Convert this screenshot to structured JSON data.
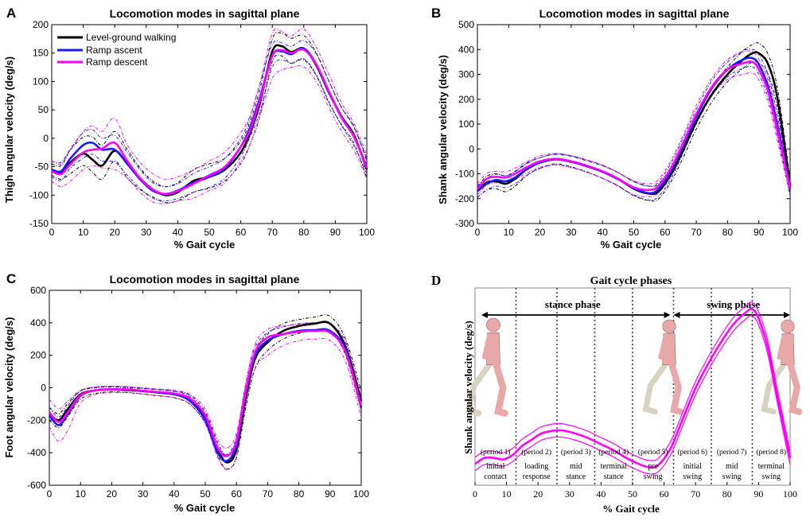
{
  "figure": {
    "panel_letters": [
      "A",
      "B",
      "C",
      "D"
    ]
  },
  "colors": {
    "level": "#000000",
    "ascent": "#1a1aff",
    "descent": "#ff00ff",
    "human_body": "#e8a8a8",
    "human_shadow": "#d8d2c0"
  },
  "chart_data": [
    {
      "type": "line",
      "panel": "A",
      "title": "Locomotion modes in sagittal plane",
      "xlabel": "% Gait cycle",
      "ylabel": "Thigh angular velocity (deg/s)",
      "xlim": [
        0,
        100
      ],
      "ylim": [
        -150,
        200
      ],
      "xticks": [
        0,
        10,
        20,
        30,
        40,
        50,
        60,
        70,
        80,
        90,
        100
      ],
      "yticks": [
        -150,
        -100,
        -50,
        0,
        50,
        100,
        150,
        200
      ],
      "legend": {
        "placement": "top-left",
        "entries": [
          "Level-ground walking",
          "Ramp ascent",
          "Ramp descent"
        ]
      },
      "x": [
        0,
        3,
        6,
        10,
        13,
        16,
        20,
        24,
        28,
        32,
        36,
        40,
        45,
        50,
        55,
        60,
        63,
        66,
        70,
        73,
        76,
        80,
        84,
        88,
        92,
        96,
        100
      ],
      "series": [
        {
          "name": "Level-ground walking",
          "values": [
            -55,
            -60,
            -42,
            -27,
            -38,
            -48,
            -22,
            -45,
            -70,
            -90,
            -100,
            -95,
            -75,
            -68,
            -55,
            -25,
            10,
            60,
            153,
            162,
            152,
            158,
            128,
            80,
            38,
            5,
            -55
          ]
        },
        {
          "name": "Ramp ascent",
          "values": [
            -55,
            -58,
            -35,
            -12,
            -8,
            -20,
            -20,
            -45,
            -72,
            -92,
            -98,
            -92,
            -78,
            -68,
            -52,
            -15,
            20,
            70,
            145,
            153,
            148,
            158,
            130,
            82,
            38,
            2,
            -50
          ]
        },
        {
          "name": "Ramp descent",
          "values": [
            -58,
            -63,
            -45,
            -25,
            -20,
            -18,
            -8,
            -40,
            -70,
            -90,
            -98,
            -93,
            -80,
            -65,
            -50,
            -15,
            15,
            65,
            145,
            155,
            150,
            156,
            130,
            82,
            36,
            2,
            -52
          ]
        }
      ],
      "bands": [
        {
          "color_key": "level",
          "upper": [
            -45,
            -48,
            -20,
            2,
            2,
            -12,
            12,
            -20,
            -52,
            -75,
            -85,
            -78,
            -55,
            -45,
            -35,
            -5,
            30,
            85,
            175,
            185,
            176,
            181,
            150,
            100,
            54,
            20,
            -40
          ],
          "lower": [
            -65,
            -72,
            -62,
            -48,
            -60,
            -72,
            -40,
            -70,
            -90,
            -103,
            -113,
            -110,
            -95,
            -88,
            -75,
            -45,
            -10,
            38,
            135,
            145,
            132,
            138,
            110,
            62,
            24,
            -10,
            -70
          ]
        },
        {
          "color_key": "ascent",
          "upper": [
            -40,
            -42,
            -18,
            10,
            15,
            0,
            5,
            -25,
            -55,
            -78,
            -85,
            -80,
            -62,
            -50,
            -35,
            0,
            38,
            95,
            165,
            168,
            162,
            172,
            148,
            100,
            54,
            18,
            -35
          ],
          "lower": [
            -68,
            -74,
            -52,
            -35,
            -28,
            -40,
            -42,
            -65,
            -88,
            -105,
            -110,
            -106,
            -95,
            -86,
            -70,
            -32,
            3,
            45,
            125,
            138,
            132,
            140,
            112,
            64,
            22,
            -14,
            -62
          ]
        },
        {
          "color_key": "descent",
          "upper": [
            -40,
            -45,
            -20,
            12,
            22,
            12,
            35,
            -12,
            -42,
            -62,
            -72,
            -68,
            -56,
            -40,
            -24,
            10,
            40,
            95,
            185,
            188,
            180,
            192,
            160,
            112,
            62,
            25,
            -30
          ],
          "lower": [
            -76,
            -85,
            -75,
            -55,
            -48,
            -52,
            -55,
            -70,
            -95,
            -112,
            -115,
            -110,
            -105,
            -92,
            -78,
            -40,
            -10,
            38,
            105,
            120,
            125,
            126,
            100,
            54,
            12,
            -22,
            -72
          ]
        }
      ]
    },
    {
      "type": "line",
      "panel": "B",
      "title": "Locomotion modes in sagittal plane",
      "xlabel": "% Gait cycle",
      "ylabel": "Shank angular velocity (deg/s)",
      "xlim": [
        0,
        100
      ],
      "ylim": [
        -300,
        500
      ],
      "xticks": [
        0,
        10,
        20,
        30,
        40,
        50,
        60,
        70,
        80,
        90,
        100
      ],
      "yticks": [
        -300,
        -200,
        -100,
        0,
        100,
        200,
        300,
        400,
        500
      ],
      "x": [
        0,
        3,
        6,
        9,
        12,
        16,
        20,
        25,
        30,
        35,
        40,
        45,
        50,
        55,
        58,
        62,
        66,
        70,
        75,
        80,
        85,
        88,
        90,
        93,
        96,
        100
      ],
      "series": [
        {
          "name": "Level-ground walking",
          "values": [
            -170,
            -135,
            -130,
            -140,
            -120,
            -80,
            -55,
            -40,
            -50,
            -68,
            -90,
            -120,
            -160,
            -180,
            -170,
            -100,
            0,
            110,
            220,
            300,
            360,
            385,
            385,
            340,
            200,
            -150
          ]
        },
        {
          "name": "Ramp ascent",
          "values": [
            -170,
            -140,
            -125,
            -130,
            -115,
            -80,
            -55,
            -42,
            -52,
            -70,
            -92,
            -122,
            -158,
            -178,
            -160,
            -85,
            20,
            130,
            245,
            320,
            360,
            365,
            340,
            250,
            90,
            -160
          ]
        },
        {
          "name": "Ramp descent",
          "values": [
            -160,
            -120,
            -112,
            -115,
            -100,
            -72,
            -50,
            -40,
            -50,
            -68,
            -90,
            -120,
            -155,
            -165,
            -148,
            -75,
            30,
            140,
            250,
            320,
            345,
            350,
            320,
            230,
            70,
            -155
          ]
        }
      ],
      "bands": [
        {
          "color_key": "level",
          "upper": [
            -150,
            -110,
            -100,
            -108,
            -90,
            -55,
            -35,
            -20,
            -28,
            -45,
            -65,
            -95,
            -130,
            -150,
            -140,
            -70,
            30,
            140,
            250,
            330,
            395,
            420,
            425,
            380,
            240,
            -120
          ],
          "lower": [
            -195,
            -165,
            -160,
            -172,
            -150,
            -105,
            -78,
            -60,
            -72,
            -92,
            -118,
            -148,
            -188,
            -208,
            -200,
            -130,
            -30,
            80,
            190,
            270,
            325,
            350,
            345,
            300,
            160,
            -180
          ]
        },
        {
          "color_key": "ascent",
          "upper": [
            -150,
            -118,
            -102,
            -108,
            -92,
            -58,
            -35,
            -22,
            -30,
            -48,
            -68,
            -96,
            -132,
            -150,
            -132,
            -55,
            50,
            160,
            275,
            350,
            395,
            400,
            380,
            295,
            130,
            -130
          ],
          "lower": [
            -195,
            -165,
            -150,
            -155,
            -140,
            -104,
            -78,
            -64,
            -75,
            -94,
            -118,
            -150,
            -186,
            -206,
            -190,
            -118,
            -10,
            100,
            215,
            290,
            325,
            330,
            300,
            205,
            50,
            -190
          ]
        },
        {
          "color_key": "descent",
          "upper": [
            -140,
            -98,
            -90,
            -92,
            -78,
            -50,
            -28,
            -18,
            -27,
            -44,
            -66,
            -95,
            -128,
            -140,
            -122,
            -45,
            60,
            175,
            285,
            360,
            390,
            392,
            362,
            275,
            110,
            -130
          ],
          "lower": [
            -185,
            -145,
            -136,
            -140,
            -124,
            -96,
            -74,
            -64,
            -74,
            -94,
            -118,
            -148,
            -184,
            -192,
            -176,
            -108,
            0,
            105,
            215,
            280,
            300,
            305,
            278,
            185,
            30,
            -185
          ]
        }
      ]
    },
    {
      "type": "line",
      "panel": "C",
      "title": "Locomotion modes in sagittal plane",
      "xlabel": "% Gait cycle",
      "ylabel": "Foot angular velocity (deg/s)",
      "xlim": [
        0,
        100
      ],
      "ylim": [
        -600,
        600
      ],
      "xticks": [
        0,
        10,
        20,
        30,
        40,
        50,
        60,
        70,
        80,
        90,
        100
      ],
      "yticks": [
        -600,
        -400,
        -200,
        0,
        200,
        400,
        600
      ],
      "x": [
        0,
        3,
        6,
        10,
        15,
        20,
        25,
        30,
        35,
        40,
        45,
        50,
        54,
        57,
        60,
        63,
        66,
        70,
        75,
        80,
        85,
        90,
        95,
        100
      ],
      "series": [
        {
          "name": "Level-ground walking",
          "values": [
            -160,
            -200,
            -130,
            -40,
            -15,
            -10,
            -15,
            -20,
            -30,
            -40,
            -70,
            -180,
            -380,
            -460,
            -380,
            -60,
            180,
            280,
            350,
            380,
            395,
            395,
            250,
            -80
          ]
        },
        {
          "name": "Ramp ascent",
          "values": [
            -170,
            -230,
            -160,
            -50,
            -15,
            -10,
            -12,
            -20,
            -28,
            -40,
            -80,
            -200,
            -400,
            -450,
            -350,
            -20,
            200,
            290,
            330,
            350,
            355,
            350,
            230,
            -120
          ]
        },
        {
          "name": "Ramp descent",
          "values": [
            -150,
            -210,
            -150,
            -45,
            -15,
            -10,
            -10,
            -18,
            -26,
            -35,
            -65,
            -170,
            -370,
            -420,
            -330,
            -20,
            220,
            310,
            330,
            345,
            350,
            340,
            220,
            -110
          ]
        }
      ],
      "bands": [
        {
          "color_key": "level",
          "upper": [
            -120,
            -160,
            -95,
            -20,
            0,
            5,
            0,
            -5,
            -12,
            -22,
            -45,
            -150,
            -340,
            -420,
            -330,
            -10,
            230,
            330,
            395,
            420,
            435,
            440,
            300,
            -20
          ],
          "lower": [
            -200,
            -245,
            -175,
            -70,
            -35,
            -25,
            -30,
            -38,
            -50,
            -62,
            -100,
            -220,
            -420,
            -500,
            -430,
            -120,
            120,
            230,
            300,
            335,
            350,
            350,
            200,
            -140
          ]
        },
        {
          "color_key": "ascent",
          "upper": [
            -120,
            -180,
            -110,
            -20,
            5,
            8,
            5,
            -3,
            -10,
            -20,
            -55,
            -165,
            -360,
            -410,
            -300,
            30,
            250,
            340,
            375,
            395,
            400,
            395,
            280,
            -60
          ]
        },
        {
          "color_key": "descent",
          "upper": [
            -70,
            -130,
            -80,
            -15,
            5,
            10,
            8,
            0,
            -8,
            -15,
            -40,
            -130,
            -320,
            -370,
            -280,
            30,
            270,
            360,
            380,
            390,
            400,
            390,
            270,
            -60
          ],
          "lower": [
            -240,
            -330,
            -260,
            -95,
            -40,
            -30,
            -30,
            -38,
            -48,
            -60,
            -100,
            -220,
            -430,
            -505,
            -420,
            -100,
            120,
            200,
            260,
            290,
            300,
            290,
            160,
            -180
          ]
        }
      ]
    },
    {
      "type": "line",
      "panel": "D",
      "title": "Gait cycle phases",
      "xlabel": "% Gait cycle",
      "ylabel": "Shank angular velocity (deg/s)",
      "xlim": [
        0,
        100
      ],
      "ylim": [
        -230,
        420
      ],
      "xticks": [
        0,
        10,
        20,
        30,
        40,
        50,
        60,
        70,
        80,
        90,
        100
      ],
      "phase_labels": {
        "stance": "stance phase",
        "swing": "swing phase"
      },
      "boundaries": [
        13,
        26,
        38,
        50,
        63,
        75,
        88
      ],
      "periods": [
        {
          "id": "(period 1)",
          "name_line1": "initial",
          "name_line2": "contact"
        },
        {
          "id": "(period 2)",
          "name_line1": "loading",
          "name_line2": "response"
        },
        {
          "id": "(period 3)",
          "name_line1": "mid",
          "name_line2": "stance"
        },
        {
          "id": "(period 4)",
          "name_line1": "terminal",
          "name_line2": "stance"
        },
        {
          "id": "(period 5)",
          "name_line1": "pre",
          "name_line2": "swing"
        },
        {
          "id": "(period 6)",
          "name_line1": "initial",
          "name_line2": "swing"
        },
        {
          "id": "(period 7)",
          "name_line1": "mid",
          "name_line2": "swing"
        },
        {
          "id": "(period 8)",
          "name_line1": "terminal",
          "name_line2": "swing"
        }
      ],
      "x": [
        0,
        3,
        6,
        9,
        12,
        15,
        18,
        21,
        25,
        28,
        32,
        36,
        40,
        44,
        48,
        52,
        55,
        58,
        62,
        66,
        70,
        74,
        78,
        82,
        86,
        88,
        90,
        93,
        96,
        100
      ],
      "series": [
        {
          "name": "",
          "values": [
            -160,
            -140,
            -140,
            -145,
            -130,
            -100,
            -80,
            -60,
            -50,
            -50,
            -60,
            -75,
            -95,
            -115,
            -140,
            -160,
            -170,
            -165,
            -110,
            -10,
            90,
            170,
            240,
            300,
            340,
            350,
            320,
            220,
            60,
            -140
          ]
        }
      ],
      "band_offset": 22
    }
  ]
}
